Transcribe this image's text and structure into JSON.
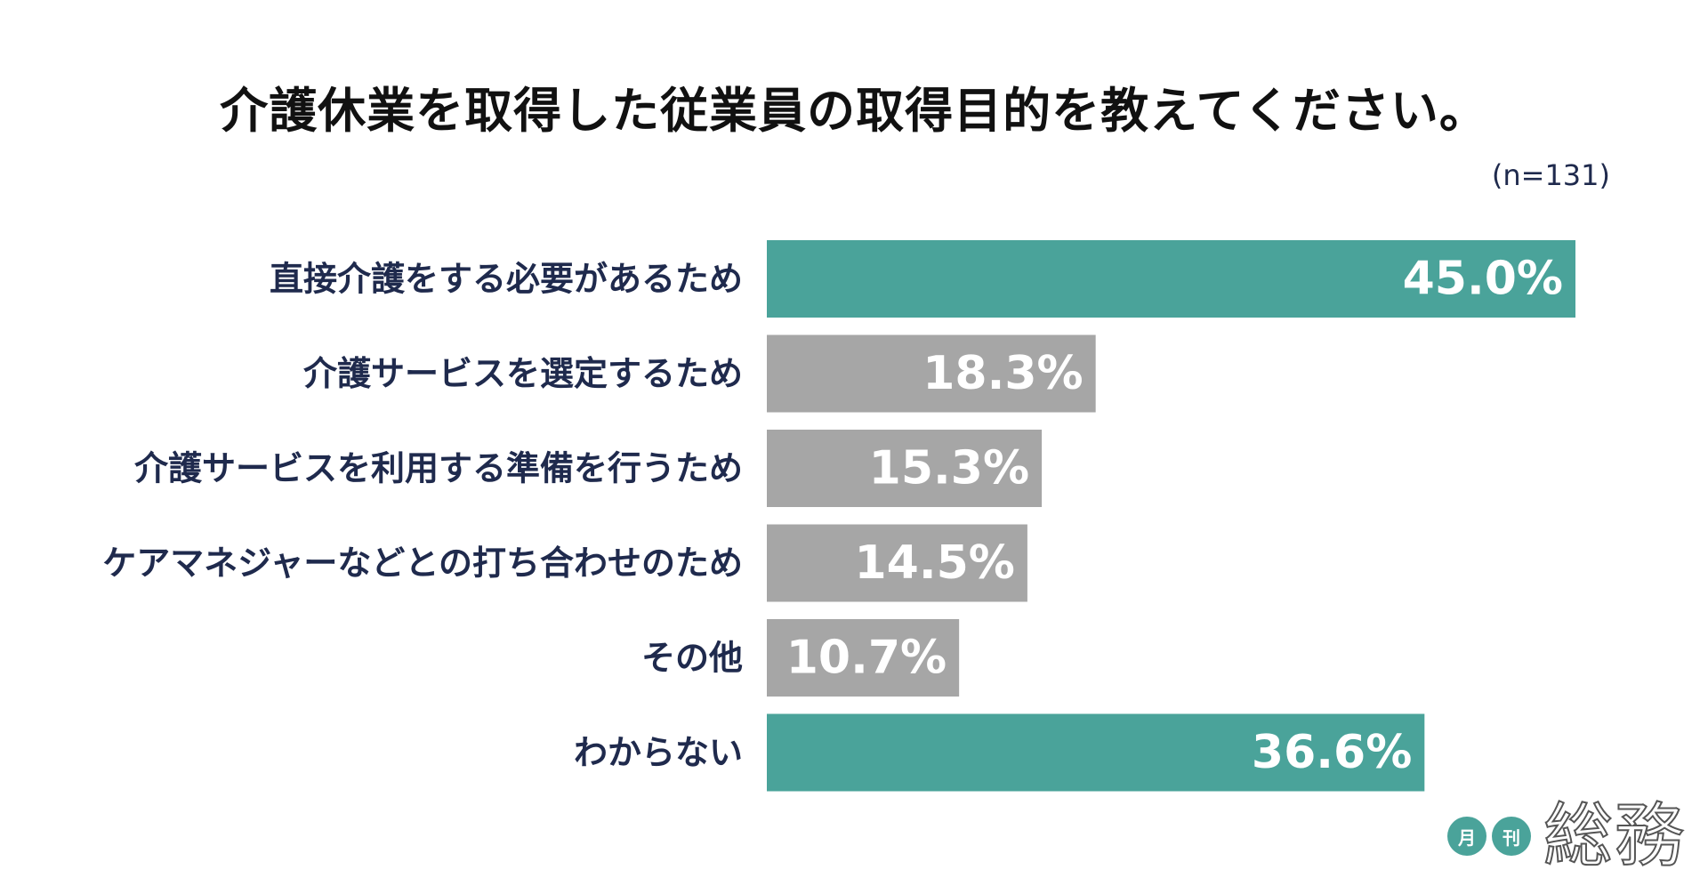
{
  "chart_data": {
    "type": "bar",
    "orientation": "horizontal",
    "title": "介護休業を取得した従業員の取得目的を教えてください。",
    "note": "(n=131)",
    "categories": [
      "直接介護をする必要があるため",
      "介護サービスを選定するため",
      "介護サービスを利用する準備を行うため",
      "ケアマネジャーなどとの打ち合わせのため",
      "その他",
      "わからない"
    ],
    "values": [
      45.0,
      18.3,
      15.3,
      14.5,
      10.7,
      36.6
    ],
    "value_labels": [
      "45.0%",
      "18.3%",
      "15.3%",
      "14.5%",
      "10.7%",
      "36.6%"
    ],
    "highlight": [
      true,
      false,
      false,
      false,
      false,
      true
    ],
    "xlim": [
      0,
      50
    ],
    "grid": false,
    "legend": "none",
    "colors": {
      "highlight": "#4aa39a",
      "default": "#a6a6a6",
      "label": "#1f2a4d"
    }
  },
  "logo": {
    "badge_1": "月",
    "badge_2": "刊",
    "name": "総務"
  }
}
